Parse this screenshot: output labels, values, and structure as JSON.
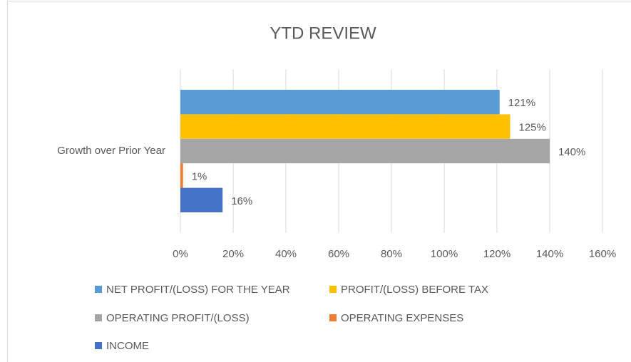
{
  "chart_data": {
    "type": "bar",
    "orientation": "horizontal",
    "title": "YTD REVIEW",
    "categories": [
      "Growth over Prior Year"
    ],
    "series": [
      {
        "name": "NET PROFIT/(LOSS) FOR THE YEAR",
        "color": "#5b9bd5",
        "values": [
          121
        ],
        "value_labels": [
          "121%"
        ]
      },
      {
        "name": "PROFIT/(LOSS) BEFORE TAX",
        "color": "#ffc000",
        "values": [
          125
        ],
        "value_labels": [
          "125%"
        ]
      },
      {
        "name": "OPERATING PROFIT/(LOSS)",
        "color": "#a5a5a5",
        "values": [
          140
        ],
        "value_labels": [
          "140%"
        ]
      },
      {
        "name": "OPERATING EXPENSES",
        "color": "#ed7d31",
        "values": [
          1
        ],
        "value_labels": [
          "1%"
        ]
      },
      {
        "name": "INCOME",
        "color": "#4472c4",
        "values": [
          16
        ],
        "value_labels": [
          "16%"
        ]
      }
    ],
    "xlim": [
      0,
      160
    ],
    "xticks": [
      {
        "value": 0,
        "label": "0%"
      },
      {
        "value": 20,
        "label": "20%"
      },
      {
        "value": 40,
        "label": "40%"
      },
      {
        "value": 60,
        "label": "60%"
      },
      {
        "value": 80,
        "label": "80%"
      },
      {
        "value": 100,
        "label": "100%"
      },
      {
        "value": 120,
        "label": "120%"
      },
      {
        "value": 140,
        "label": "140%"
      },
      {
        "value": 160,
        "label": "160%"
      }
    ],
    "grid": true,
    "legend": "bottom"
  }
}
